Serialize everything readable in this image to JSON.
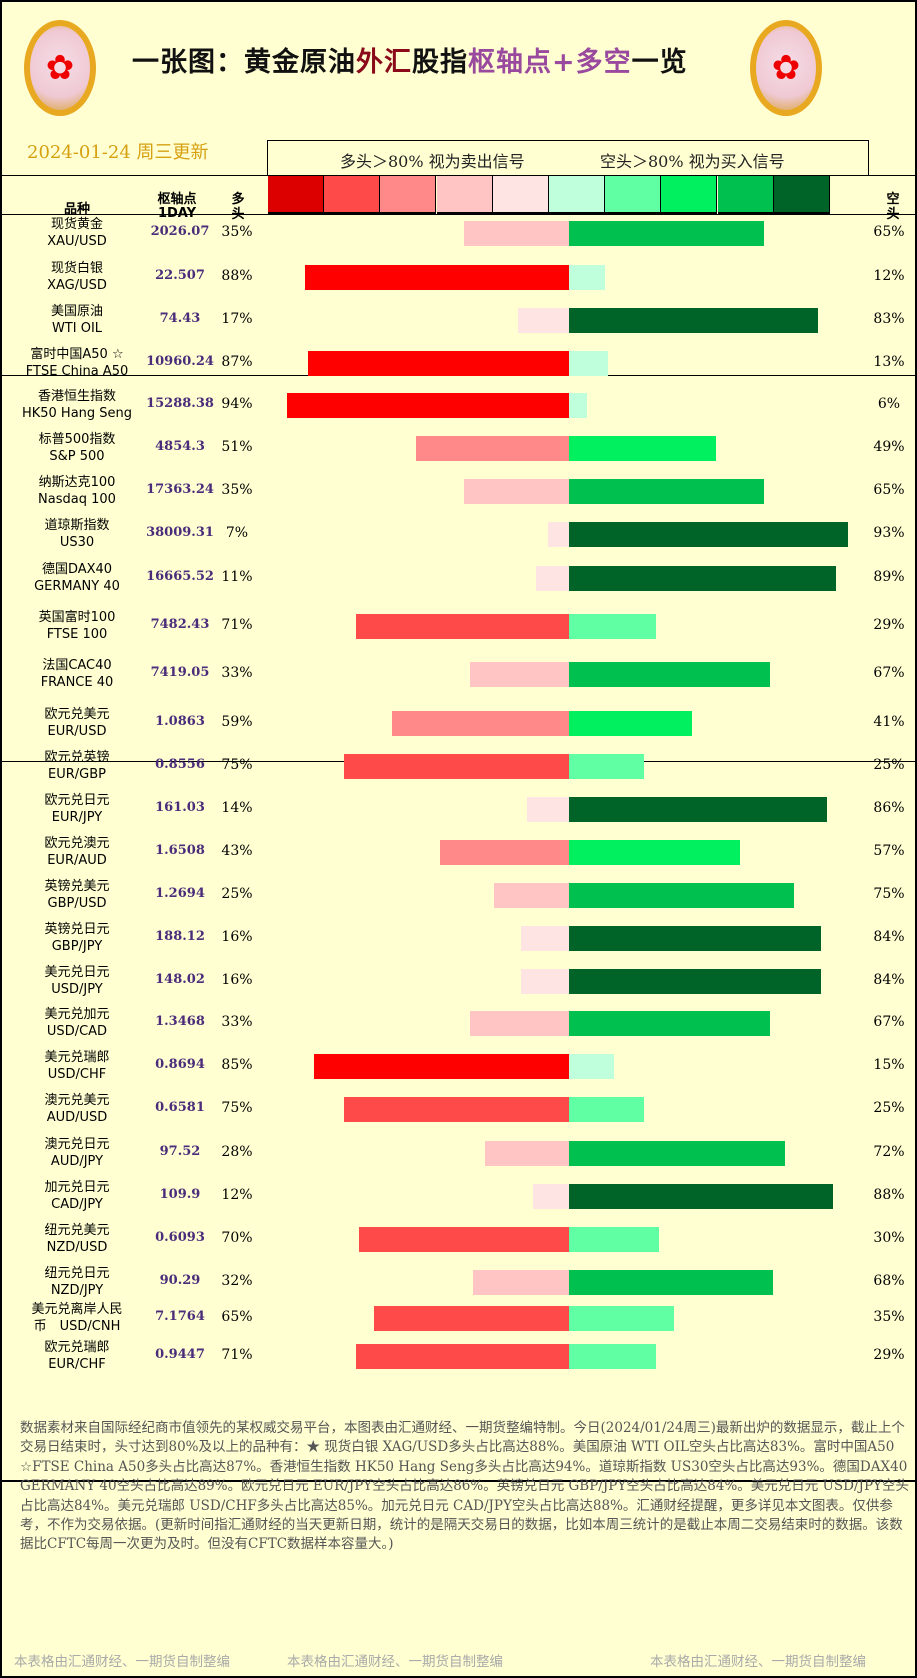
{
  "header": {
    "title_parts": [
      {
        "t": "一张图：黄金原油",
        "c": ""
      },
      {
        "t": "外汇",
        "c": "r"
      },
      {
        "t": "股指",
        "c": ""
      },
      {
        "t": "枢轴点+多空",
        "c": "p"
      },
      {
        "t": "一览",
        "c": ""
      }
    ],
    "date": "2024-01-24 周三更新",
    "legend_long": "多头＞80% 视为卖出信号",
    "legend_short": "空头＞80% 视为买入信号",
    "legend_colors": [
      "#dd0000",
      "#ff4a4a",
      "#ff8888",
      "#ffc4c4",
      "#ffe4e4",
      "#c0ffdc",
      "#60ffa4",
      "#00f060",
      "#00c050",
      "#006428"
    ],
    "col_name": "品种",
    "col_pivot": "枢轴点",
    "col_pivot_sub": "1DAY",
    "col_long": "多头",
    "col_short": "空头"
  },
  "colors": {
    "long": [
      "#ffe4e4",
      "#ffc4c4",
      "#ff8888",
      "#ff4a4a",
      "#ff0000"
    ],
    "short": [
      "#c0ffdc",
      "#60ffa4",
      "#00f060",
      "#00c050",
      "#006428"
    ],
    "pivot": "#4a2c7a"
  },
  "rows": [
    {
      "cn": "现货黄金",
      "en": "XAU/USD",
      "pivot": "2026.07",
      "long": 35,
      "short": 65
    },
    {
      "cn": "现货白银",
      "en": "XAG/USD",
      "pivot": "22.507",
      "long": 88,
      "short": 12
    },
    {
      "cn": "美国原油",
      "en": "WTI OIL",
      "pivot": "74.43",
      "long": 17,
      "short": 83
    },
    {
      "cn": "富时中国A50 ☆",
      "en": "FTSE China A50",
      "pivot": "10960.24",
      "long": 87,
      "short": 13
    },
    {
      "cn": "香港恒生指数",
      "en": "HK50 Hang Seng",
      "pivot": "15288.38",
      "long": 94,
      "short": 6
    },
    {
      "cn": "标普500指数",
      "en": "S&P 500",
      "pivot": "4854.3",
      "long": 51,
      "short": 49
    },
    {
      "cn": "纳斯达克100",
      "en": "Nasdaq 100",
      "pivot": "17363.24",
      "long": 35,
      "short": 65
    },
    {
      "cn": "道琼斯指数",
      "en": "US30",
      "pivot": "38009.31",
      "long": 7,
      "short": 93
    },
    {
      "cn": "德国DAX40",
      "en": "GERMANY 40",
      "pivot": "16665.52",
      "long": 11,
      "short": 89
    },
    {
      "cn": "英国富时100",
      "en": "FTSE 100",
      "pivot": "7482.43",
      "long": 71,
      "short": 29
    },
    {
      "cn": "法国CAC40",
      "en": "FRANCE 40",
      "pivot": "7419.05",
      "long": 33,
      "short": 67
    },
    {
      "cn": "欧元兑美元",
      "en": "EUR/USD",
      "pivot": "1.0863",
      "long": 59,
      "short": 41
    },
    {
      "cn": "欧元兑英镑",
      "en": "EUR/GBP",
      "pivot": "0.8556",
      "long": 75,
      "short": 25
    },
    {
      "cn": "欧元兑日元",
      "en": "EUR/JPY",
      "pivot": "161.03",
      "long": 14,
      "short": 86
    },
    {
      "cn": "欧元兑澳元",
      "en": "EUR/AUD",
      "pivot": "1.6508",
      "long": 43,
      "short": 57
    },
    {
      "cn": "英镑兑美元",
      "en": "GBP/USD",
      "pivot": "1.2694",
      "long": 25,
      "short": 75
    },
    {
      "cn": "英镑兑日元",
      "en": "GBP/JPY",
      "pivot": "188.12",
      "long": 16,
      "short": 84
    },
    {
      "cn": "美元兑日元",
      "en": "USD/JPY",
      "pivot": "148.02",
      "long": 16,
      "short": 84
    },
    {
      "cn": "美元兑加元",
      "en": "USD/CAD",
      "pivot": "1.3468",
      "long": 33,
      "short": 67
    },
    {
      "cn": "美元兑瑞郎",
      "en": "USD/CHF",
      "pivot": "0.8694",
      "long": 85,
      "short": 15
    },
    {
      "cn": "澳元兑美元",
      "en": "AUD/USD",
      "pivot": "0.6581",
      "long": 75,
      "short": 25
    },
    {
      "cn": "澳元兑日元",
      "en": "AUD/JPY",
      "pivot": "97.52",
      "long": 28,
      "short": 72
    },
    {
      "cn": "加元兑日元",
      "en": "CAD/JPY",
      "pivot": "109.9",
      "long": 12,
      "short": 88
    },
    {
      "cn": "纽元兑美元",
      "en": "NZD/USD",
      "pivot": "0.6093",
      "long": 70,
      "short": 30
    },
    {
      "cn": "纽元兑日元",
      "en": "NZD/JPY",
      "pivot": "90.29",
      "long": 32,
      "short": 68
    },
    {
      "cn": "美元兑离岸人民",
      "en": "币　USD/CNH",
      "pivot": "7.1764",
      "long": 65,
      "short": 35
    },
    {
      "cn": "欧元兑瑞郎",
      "en": "EUR/CHF",
      "pivot": "0.9447",
      "long": 71,
      "short": 29
    }
  ],
  "footer": {
    "text": "数据素材来自国际经纪商市值领先的某权威交易平台，本图表由汇通财经、一期货整编特制。今日(2024/01/24周三)最新出炉的数据显示，截止上个交易日结束时，头寸达到80%及以上的品种有：★ 现货白银 XAG/USD多头占比高达88%。美国原油 WTI OIL空头占比高达83%。富时中国A50 ☆FTSE China A50多头占比高达87%。香港恒生指数 HK50 Hang Seng多头占比高达94%。道琼斯指数 US30空头占比高达93%。德国DAX40　　GERMANY 40空头占比高达89%。欧元兑日元 EUR/JPY空头占比高达86%。英镑兑日元 GBP/JPY空头占比高达84%。美元兑日元 USD/JPY空头占比高达84%。美元兑瑞郎 USD/CHF多头占比高达85%。加元兑日元 CAD/JPY空头占比高达88%。汇通财经提醒，更多详见本文图表。仅供参考，不作为交易依据。(更新时间指汇通财经的当天更新日期，统计的是隔天交易日的数据，比如本周三统计的是截止本周二交易结束时的数据。该数据比CFTC每周一次更为及时。但没有CFTC数据样本容量大。)",
    "watermark": "本表格由汇通财经、一期货自制整编"
  }
}
